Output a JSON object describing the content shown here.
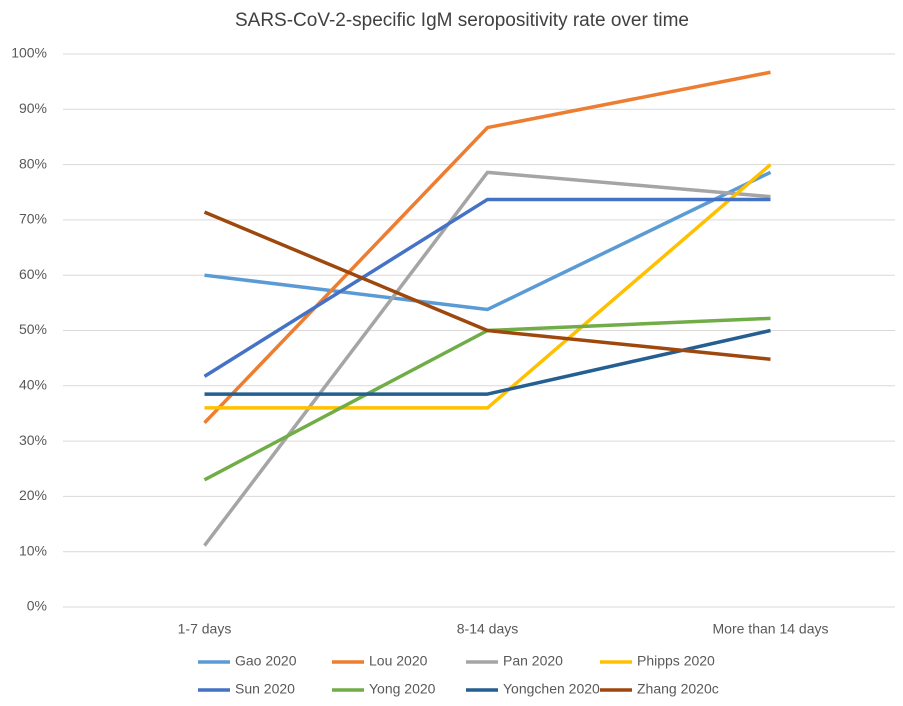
{
  "chart_data": {
    "type": "line",
    "title": "SARS-CoV-2-specific IgM seropositivity rate over time",
    "categories": [
      "1-7 days",
      "8-14 days",
      "More than 14 days"
    ],
    "series": [
      {
        "name": "Gao 2020",
        "color": "#5b9bd5",
        "values": [
          60,
          53.8,
          78.6
        ]
      },
      {
        "name": "Lou 2020",
        "color": "#ed7d31",
        "values": [
          33.3,
          86.7,
          96.7
        ]
      },
      {
        "name": "Pan 2020",
        "color": "#a5a5a5",
        "values": [
          11.1,
          78.6,
          74.2
        ]
      },
      {
        "name": "Phipps 2020",
        "color": "#ffc000",
        "values": [
          36,
          36,
          80
        ]
      },
      {
        "name": "Sun 2020",
        "color": "#4472c4",
        "values": [
          41.7,
          73.7,
          73.7
        ]
      },
      {
        "name": "Yong 2020",
        "color": "#70ad47",
        "values": [
          23,
          50,
          52.2
        ]
      },
      {
        "name": "Yongchen 2020",
        "color": "#255e91",
        "values": [
          38.5,
          38.5,
          50
        ]
      },
      {
        "name": "Zhang 2020c",
        "color": "#9e480e",
        "values": [
          71.4,
          50,
          44.8
        ]
      }
    ],
    "ylim": [
      0,
      100
    ],
    "yticks": [
      {
        "value": 0,
        "label": "0%"
      },
      {
        "value": 10,
        "label": "10%"
      },
      {
        "value": 20,
        "label": "20%"
      },
      {
        "value": 30,
        "label": "30%"
      },
      {
        "value": 40,
        "label": "40%"
      },
      {
        "value": 50,
        "label": "50%"
      },
      {
        "value": 60,
        "label": "60%"
      },
      {
        "value": 70,
        "label": "70%"
      },
      {
        "value": 80,
        "label": "80%"
      },
      {
        "value": 90,
        "label": "90%"
      },
      {
        "value": 100,
        "label": "100%"
      }
    ],
    "grid": true,
    "legend": "bottom"
  }
}
